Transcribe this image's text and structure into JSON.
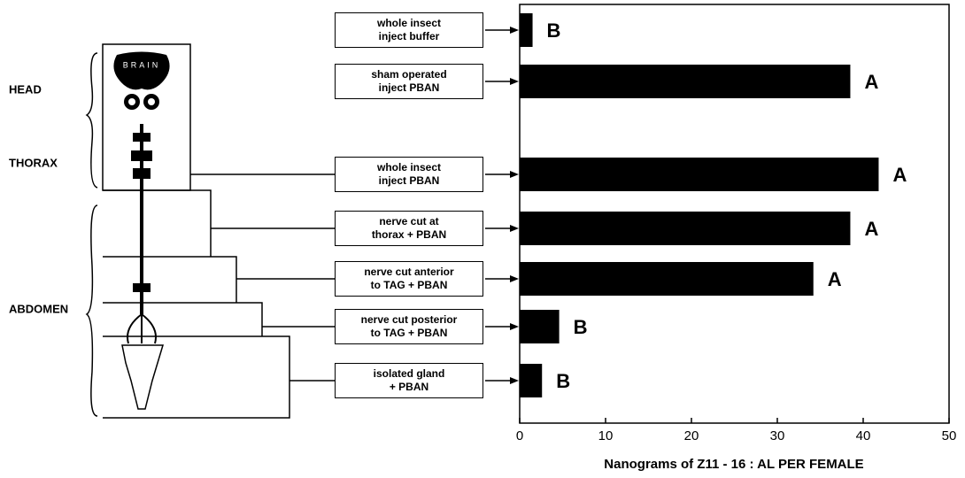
{
  "chart_data": {
    "type": "bar",
    "orientation": "horizontal",
    "x_label": "Nanograms of Z11 - 16 : AL PER FEMALE",
    "categories": [
      "whole insect\ninject buffer",
      "sham operated\ninject PBAN",
      "whole insect\ninject PBAN",
      "nerve cut at\nthorax + PBAN",
      "nerve cut anterior\nto TAG + PBAN",
      "nerve cut posterior\nto TAG + PBAN",
      "isolated gland\n+ PBAN"
    ],
    "values": [
      1.5,
      38.5,
      41.8,
      38.5,
      34.2,
      4.6,
      2.6
    ],
    "significance": [
      "B",
      "A",
      "A",
      "A",
      "A",
      "B",
      "B"
    ],
    "color": "#000000",
    "xlim": [
      0,
      50
    ],
    "xticks": [
      0,
      10,
      20,
      30,
      40,
      50
    ],
    "body_regions": [
      "HEAD",
      "THORAX",
      "ABDOMEN"
    ],
    "brain_label": "BRAIN"
  }
}
